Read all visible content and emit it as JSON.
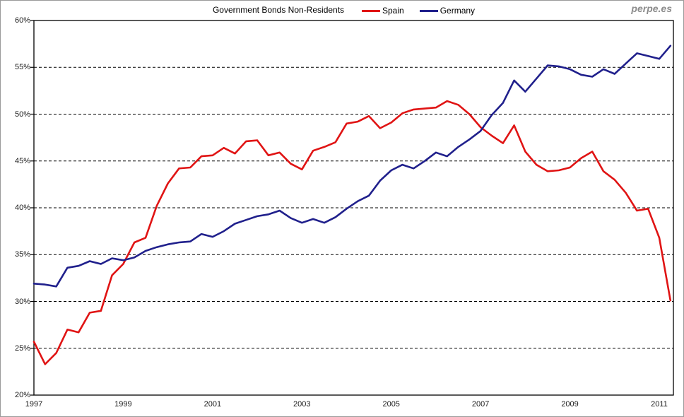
{
  "header": {
    "title": "Government Bonds Non-Residents",
    "watermark": "perpe.es"
  },
  "chart_data": {
    "type": "line",
    "title": "Government Bonds Non-Residents",
    "x_frequency": "quarterly",
    "x_start": "1997Q1",
    "x_end": "2011Q2",
    "x_tick_labels": [
      "1997",
      "1999",
      "2001",
      "2003",
      "2005",
      "2007",
      "2009",
      "2011"
    ],
    "y_tick_labels": [
      "60%",
      "55%",
      "50%",
      "45%",
      "40%",
      "35%",
      "30%",
      "25%",
      "20%"
    ],
    "ylim": [
      20,
      60
    ],
    "y_step": 5,
    "grid": "horizontal-dashed",
    "legend_position": "top",
    "background": "#ffffff",
    "frame_color": "#000000",
    "gridline_color": "#000000",
    "series": [
      {
        "name": "Spain",
        "color": "#e01414",
        "values": [
          25.7,
          23.3,
          24.5,
          27.0,
          26.7,
          28.8,
          29.0,
          32.8,
          34.0,
          36.3,
          36.8,
          40.2,
          42.6,
          44.2,
          44.3,
          45.5,
          45.6,
          46.4,
          45.8,
          47.1,
          47.2,
          45.6,
          45.9,
          44.7,
          44.1,
          46.1,
          46.5,
          47.0,
          49.0,
          49.2,
          49.8,
          48.5,
          49.1,
          50.1,
          50.5,
          50.6,
          50.7,
          51.4,
          51.0,
          50.0,
          48.6,
          47.7,
          46.9,
          48.8,
          46.0,
          44.6,
          43.9,
          44.0,
          44.3,
          45.3,
          46.0,
          43.9,
          43.0,
          41.6,
          39.7,
          39.9,
          36.8,
          30.1
        ]
      },
      {
        "name": "Germany",
        "color": "#20208c",
        "values": [
          31.9,
          31.8,
          31.6,
          33.6,
          33.8,
          34.3,
          34.0,
          34.6,
          34.4,
          34.7,
          35.4,
          35.8,
          36.1,
          36.3,
          36.4,
          37.2,
          36.9,
          37.5,
          38.3,
          38.7,
          39.1,
          39.3,
          39.7,
          38.9,
          38.4,
          38.8,
          38.4,
          39.0,
          39.9,
          40.7,
          41.3,
          42.9,
          44.0,
          44.6,
          44.2,
          45.0,
          45.9,
          45.5,
          46.5,
          47.3,
          48.2,
          49.9,
          51.2,
          53.6,
          52.4,
          53.8,
          55.2,
          55.1,
          54.8,
          54.2,
          54.0,
          54.8,
          54.3,
          55.4,
          56.5,
          56.2,
          55.9,
          57.3
        ]
      }
    ]
  }
}
